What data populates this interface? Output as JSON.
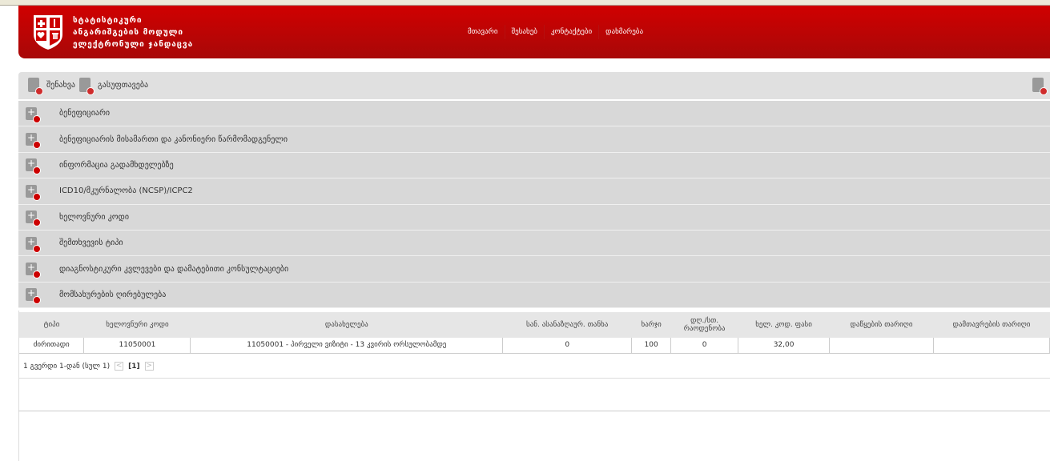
{
  "header": {
    "title_lines": [
      "სტატისტიკური",
      "ანგარიშგების მოდული",
      "ელექტრონული ჯანდაცვა"
    ],
    "nav": [
      "მთავარი",
      "შესახებ",
      "კონტაქტები",
      "დახმარება"
    ],
    "brand_color": "#c80000"
  },
  "toolbar": {
    "save_label": "შენახვა",
    "clear_label": "გასუფთავება"
  },
  "sections": [
    "ბენეფიციარი",
    "ბენეფიციარის მისამართი და კანონიერი წარმომადგენელი",
    "ინფორმაცია გადამხდელებზე",
    "ICD10/მკურნალობა (NCSP)/ICPC2",
    "ხელოვნური კოდი",
    "შემთხვევის ტიპი",
    "დიაგნოსტიკური კვლევები და დამატებითი კონსულტაციები",
    "მომსახურების ღირებულება"
  ],
  "table": {
    "headers": [
      "ტიპი",
      "ხელოვნური კოდი",
      "დასახელება",
      "სან. ასანაზღაურ. თანხა",
      "ხარჯი",
      "დღ./სთ. რაოდენობა",
      "ხელ. კოდ. ფასი",
      "დაწყების თარიღი",
      "დამთავრების თარიღი"
    ],
    "rows": [
      [
        "ძირითადი",
        "11050001",
        "11050001 - პირველი ვიზიტი - 13 კვირის ორსულობამდე",
        "0",
        "100",
        "0",
        "32,00",
        "",
        ""
      ]
    ]
  },
  "pager": {
    "summary": "1 გვერდი 1-დან (სულ 1)",
    "current": "[1]",
    "prev": "<",
    ",next": ">",
    "next": ">"
  }
}
